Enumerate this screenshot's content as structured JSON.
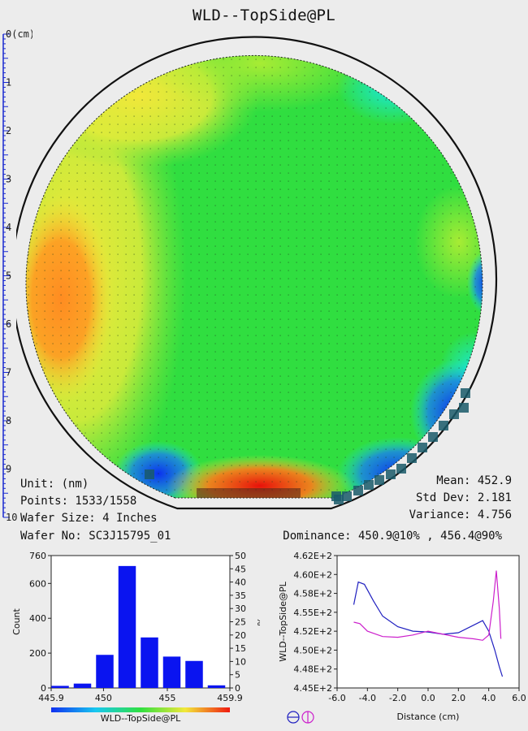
{
  "title": "WLD--TopSide@PL",
  "ruler": {
    "labels": [
      "0(cm)",
      "1",
      "2",
      "3",
      "4",
      "5",
      "6",
      "7",
      "8",
      "9",
      "10"
    ],
    "color": "#1a2ad0"
  },
  "info_left": {
    "unit": "Unit: (nm)",
    "points": "Points: 1533/1558",
    "wafer_size": "Wafer Size: 4 Inches",
    "wafer_no": "Wafer No: SC3J15795_01"
  },
  "info_right": {
    "mean": "Mean: 452.9",
    "std_dev": "Std Dev: 2.181",
    "variance": "Variance: 4.756",
    "dominance": "Dominance: 450.9@10% , 456.4@90%"
  },
  "wafer_map": {
    "colors": {
      "orange": "#ff9a22",
      "yellow": "#f2e83a",
      "green": "#2de040",
      "cyan": "#1ae8e0",
      "blue": "#1030f0",
      "red": "#f01a10"
    }
  },
  "chart_data": [
    {
      "type": "bar",
      "title": "",
      "xlabel": "WLD--TopSide@PL",
      "ylabel": "Count",
      "y2label": "%",
      "x_tick_labels": [
        "445.9",
        "450",
        "455",
        "459.9"
      ],
      "xlim": [
        445.9,
        459.9
      ],
      "ylim": [
        0,
        760
      ],
      "y2lim": [
        0,
        50
      ],
      "y_ticks": [
        0,
        200,
        400,
        600,
        760
      ],
      "y2_ticks": [
        0,
        5,
        10,
        15,
        20,
        25,
        30,
        35,
        40,
        45,
        50
      ],
      "bins_centers": [
        446.6,
        448.35,
        450.1,
        451.85,
        453.6,
        455.35,
        457.1,
        458.85
      ],
      "values": [
        12,
        25,
        190,
        700,
        290,
        180,
        155,
        15
      ],
      "bar_color": "#0a14f0"
    },
    {
      "type": "line",
      "title": "",
      "xlabel": "Distance (cm)",
      "ylabel": "WLD--TopSide@PL",
      "xlim": [
        -6.0,
        6.0
      ],
      "ylim": [
        444.5,
        462.0
      ],
      "x_tick_labels": [
        "-6.0",
        "-4.0",
        "-2.0",
        "0.0",
        "2.0",
        "4.0",
        "6.0"
      ],
      "y_tick_labels": [
        "4.45E+2",
        "4.48E+2",
        "4.50E+2",
        "4.52E+2",
        "4.55E+2",
        "4.58E+2",
        "4.60E+2",
        "4.62E+2"
      ],
      "series": [
        {
          "color": "#2020c0",
          "x": [
            -4.9,
            -4.6,
            -4.2,
            -3.6,
            -3.0,
            -2.0,
            -1.0,
            0.0,
            1.0,
            2.0,
            3.0,
            3.6,
            4.0,
            4.4,
            4.7,
            4.9
          ],
          "y": [
            455.5,
            458.5,
            458.2,
            456.0,
            454.0,
            452.6,
            452.0,
            451.9,
            451.6,
            451.8,
            452.8,
            453.4,
            452.0,
            449.5,
            447.3,
            446.0
          ]
        },
        {
          "color": "#cc20cc",
          "x": [
            -4.9,
            -4.5,
            -4.0,
            -3.0,
            -2.0,
            -1.0,
            0.0,
            1.0,
            2.0,
            3.0,
            3.6,
            4.0,
            4.3,
            4.5,
            4.7,
            4.8
          ],
          "y": [
            453.2,
            453.0,
            452.0,
            451.3,
            451.2,
            451.5,
            452.0,
            451.6,
            451.2,
            451.0,
            450.8,
            451.5,
            456.0,
            460.0,
            455.0,
            451.0
          ]
        }
      ]
    }
  ]
}
